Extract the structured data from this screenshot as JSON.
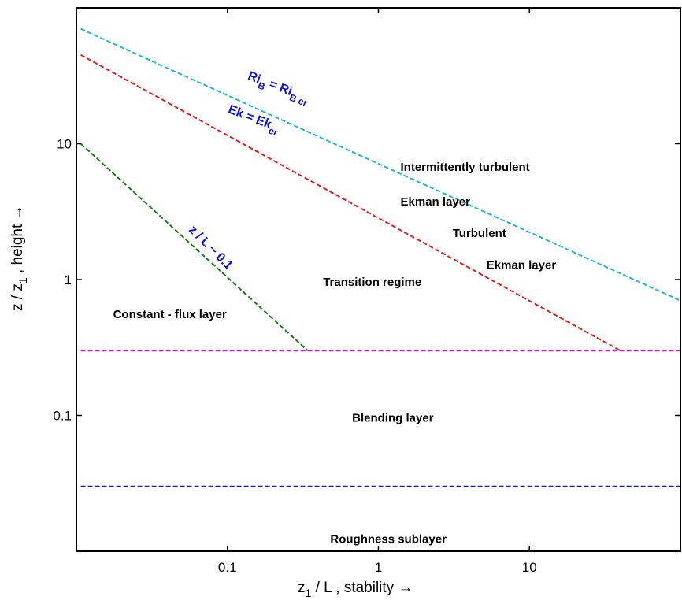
{
  "chart_data": {
    "type": "line",
    "xscale": "log",
    "yscale": "log",
    "xlim": [
      0.01,
      100
    ],
    "ylim": [
      0.01,
      100
    ],
    "grid": false,
    "xlabel": {
      "main": "z",
      "sub": "1",
      "rest": " / L ,  stability  →"
    },
    "ylabel": {
      "main": "z / z",
      "sub": "1",
      "rest": " ,  height  →"
    },
    "x_ticks": [
      {
        "value": 0.1,
        "label": "0.1"
      },
      {
        "value": 1,
        "label": "1"
      },
      {
        "value": 10,
        "label": "10"
      }
    ],
    "y_ticks": [
      {
        "value": 0.1,
        "label": "0.1"
      },
      {
        "value": 1,
        "label": "1"
      },
      {
        "value": 10,
        "label": "10"
      }
    ],
    "series": [
      {
        "key": "rib",
        "color": "#22bbcc",
        "x": [
          0.0107,
          100
        ],
        "y": [
          70,
          0.7
        ]
      },
      {
        "key": "ek",
        "color": "#e02020",
        "x": [
          0.0107,
          40
        ],
        "y": [
          45,
          0.3
        ]
      },
      {
        "key": "zl",
        "color": "#1a7a1a",
        "x": [
          0.0107,
          0.34
        ],
        "y": [
          10,
          0.3
        ]
      },
      {
        "key": "blend",
        "color": "#c020c0",
        "x": [
          0.0107,
          100
        ],
        "y": [
          0.3,
          0.3
        ]
      },
      {
        "key": "rough",
        "color": "#1020cc",
        "x": [
          0.0107,
          100
        ],
        "y": [
          0.03,
          0.03
        ]
      }
    ],
    "line_labels": [
      {
        "key": "rib",
        "parts": [
          {
            "t": "Ri",
            "s": "base"
          },
          {
            "t": "B",
            "s": "sub"
          },
          {
            "t": " = Ri",
            "s": "base"
          },
          {
            "t": "B cr",
            "s": "sub"
          }
        ],
        "x": 0.135,
        "y": 30,
        "angle": 21
      },
      {
        "key": "ek",
        "parts": [
          {
            "t": "Ek = Ek",
            "s": "base"
          },
          {
            "t": "cr",
            "s": "sub"
          }
        ],
        "x": 0.1,
        "y": 17,
        "angle": 21
      },
      {
        "key": "zl",
        "parts": [
          {
            "t": "z / L ~ 0.1",
            "s": "base"
          }
        ],
        "x": 0.055,
        "y": 2.3,
        "angle": 45
      }
    ],
    "regions": [
      {
        "text": "Intermittently turbulent",
        "x": 1.4,
        "y": 6.3
      },
      {
        "text": "Ekman layer",
        "x": 1.4,
        "y": 3.5
      },
      {
        "text": "Turbulent",
        "x": 3.1,
        "y": 2.05
      },
      {
        "text": "Ekman layer",
        "x": 5.2,
        "y": 1.2
      },
      {
        "text": "Transition regime",
        "x": 0.43,
        "y": 0.9
      },
      {
        "text": "Constant - flux layer",
        "x": 0.0175,
        "y": 0.52
      },
      {
        "text": "Blending layer",
        "x": 0.67,
        "y": 0.09
      },
      {
        "text": "Roughness sublayer",
        "x": 0.48,
        "y": 0.0115
      }
    ]
  }
}
